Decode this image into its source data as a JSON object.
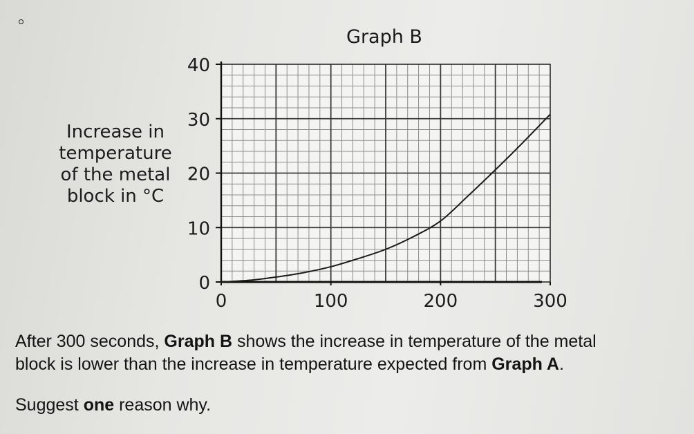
{
  "chart_data": {
    "type": "line",
    "title": "Graph B",
    "xlabel": "",
    "ylabel_lines": [
      "Increase in",
      "temperature",
      "of the metal",
      "block in °C"
    ],
    "xlim": [
      0,
      300
    ],
    "ylim": [
      0,
      40
    ],
    "x_ticks": [
      0,
      100,
      200,
      300
    ],
    "y_ticks": [
      0,
      10,
      20,
      30,
      40
    ],
    "grid": true,
    "series": [
      {
        "x": [
          0,
          25,
          50,
          75,
          100,
          125,
          150,
          175,
          200,
          225,
          250,
          275,
          300
        ],
        "y": [
          0,
          0.3,
          0.9,
          1.7,
          2.8,
          4.3,
          6.0,
          8.3,
          11.2,
          15.8,
          20.6,
          25.6,
          30.8
        ]
      }
    ]
  },
  "question": {
    "line1_a": "After 300 seconds, ",
    "line1_b": "Graph B",
    "line1_c": " shows the increase in temperature of the metal",
    "line2_a": "block is lower than the increase in temperature expected from ",
    "line2_b": "Graph A",
    "line2_c": ".",
    "prompt_a": "Suggest ",
    "prompt_b": "one",
    "prompt_c": " reason why."
  }
}
